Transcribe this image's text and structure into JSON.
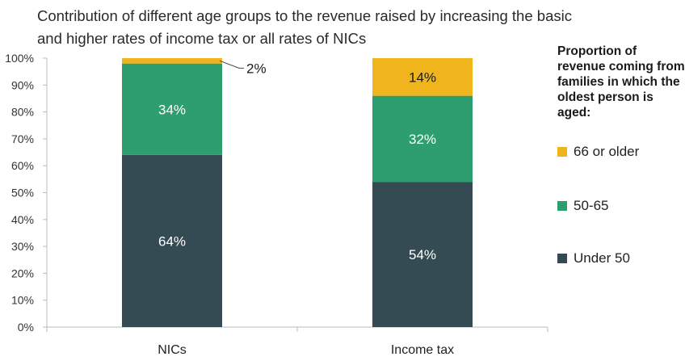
{
  "chart_data": {
    "type": "bar",
    "stacked": true,
    "title": "Contribution of different age groups to the revenue raised by increasing the basic and higher rates of income tax or all rates of NICs",
    "categories": [
      "NICs",
      "Income tax"
    ],
    "series": [
      {
        "name": "Under 50",
        "values": [
          64,
          54
        ],
        "labels": [
          "64%",
          "54%"
        ],
        "color": "#344b53",
        "label_color": "#ffffff"
      },
      {
        "name": "50-65",
        "values": [
          34,
          32
        ],
        "labels": [
          "34%",
          "32%"
        ],
        "color": "#2e9e6f",
        "label_color": "#ffffff"
      },
      {
        "name": "66 or older",
        "values": [
          2,
          14
        ],
        "labels": [
          "2%",
          "14%"
        ],
        "color": "#f0b51c",
        "label_color": "#1a1a1a"
      }
    ],
    "yticks": [
      "0%",
      "10%",
      "20%",
      "30%",
      "40%",
      "50%",
      "60%",
      "70%",
      "80%",
      "90%",
      "100%"
    ],
    "ylim": [
      0,
      100
    ],
    "grid": false,
    "legend_title": "Proportion of revenue coming from families in which the oldest person is aged:",
    "legend_order": [
      "66 or older",
      "50-65",
      "Under 50"
    ],
    "legend_position": "right",
    "callout": {
      "label": "2%",
      "category": "NICs",
      "series": "66 or older"
    }
  }
}
